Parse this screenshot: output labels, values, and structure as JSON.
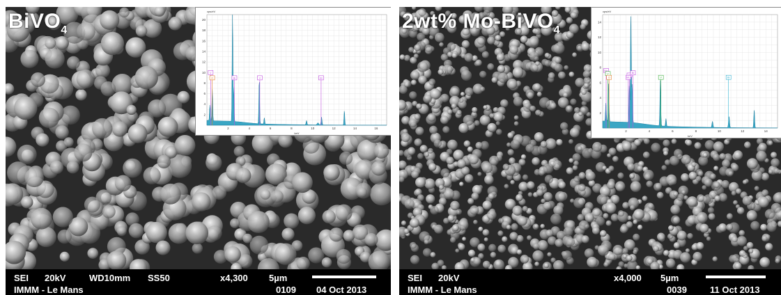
{
  "left": {
    "sample_main": "BiVO",
    "sample_sub": "4",
    "info": {
      "mode": "SEI",
      "voltage": "20kV",
      "wd": "WD10mm",
      "ss": "SS50",
      "magnification": "x4,300",
      "scale": "5µm",
      "lab": "IMMM - Le Mans",
      "image_no": "0109",
      "date": "04 Oct 2013"
    },
    "spectrum": {
      "yunit": "cps/eV",
      "xunit": "keV",
      "yticks": [
        "2",
        "4",
        "6",
        "8",
        "10",
        "12",
        "14",
        "16",
        "18",
        "20"
      ],
      "xticks": [
        "2",
        "4",
        "6",
        "8",
        "10",
        "12",
        "14",
        "16"
      ],
      "tags": [
        "V",
        "O",
        "Bi",
        "V",
        "Bi"
      ]
    }
  },
  "right": {
    "sample_main": "2wt% Mo-BiVO",
    "sample_sub": "4",
    "info": {
      "mode": "SEI",
      "voltage": "20kV",
      "magnification": "x4,000",
      "scale": "5µm",
      "lab": "IMMM - Le Mans",
      "image_no": "0039",
      "date": "11 Oct 2013"
    },
    "spectrum": {
      "yunit": "cps/eV",
      "xunit": "keV",
      "yticks": [
        "2",
        "4",
        "6",
        "8",
        "10",
        "12",
        "14"
      ],
      "xticks": [
        "2",
        "4",
        "6",
        "8",
        "10",
        "12",
        "14"
      ],
      "tags": [
        "Mo",
        "V",
        "O",
        "Bi",
        "Mo",
        "Bi",
        "V",
        "Bi"
      ]
    }
  },
  "colors": {
    "spectrum_fill": "#3aa6c4",
    "spectrum_line": "#1d7fa0",
    "tag_violet": "#c050e0",
    "tag_orange": "#e08030",
    "tag_green": "#40b040",
    "tag_cyan": "#30b0d0"
  }
}
